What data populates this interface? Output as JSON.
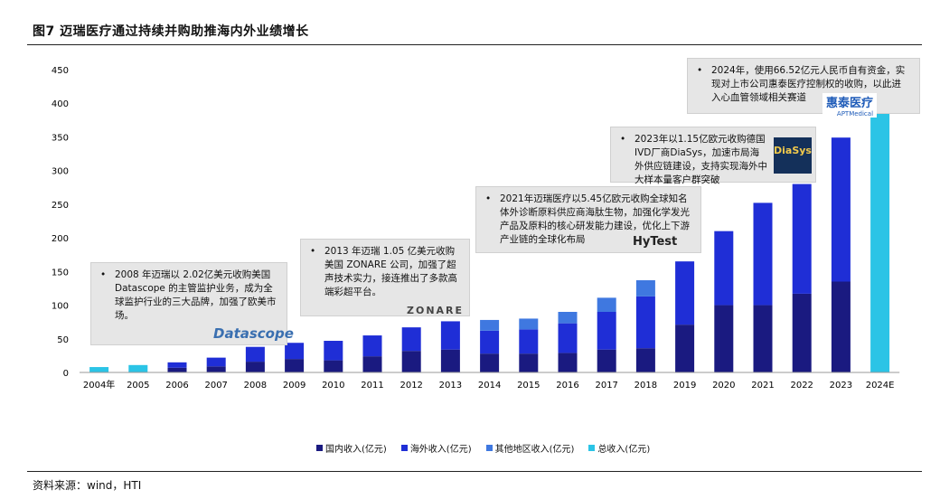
{
  "title": "图7  迈瑞医疗通过持续并购助推海内外业绩增长",
  "source": "资料来源：wind，HTI",
  "colors": {
    "domestic": "#1a1a80",
    "overseas": "#1f2ed6",
    "other": "#3f78e0",
    "total": "#2bc4e6"
  },
  "callouts": [
    {
      "bullet": "•",
      "text": "2008 年迈瑞以 2.02亿美元收购美国Datascope 的主管监护业务，成为全球监护行业的三大品牌，加强了欧美市场。",
      "logo": "Datascope"
    },
    {
      "bullet": "•",
      "text": "2013 年迈瑞 1.05 亿美元收购美国 ZONARE 公司，加强了超声技术实力，接连推出了多款高端彩超平台。",
      "logo": "ZONARE"
    },
    {
      "bullet": "•",
      "text": "2021年迈瑞医疗以5.45亿欧元收购全球知名体外诊断原料供应商海肽生物，加强化学发光产品及原料的核心研发能力建设，优化上下游产业链的全球化布局",
      "logo": "HyTest"
    },
    {
      "bullet": "•",
      "text": "2023年以1.15亿欧元收购德国IVD厂商DiaSys，加速市局海外供应链建设，支持实现海外中大样本量客户群突破",
      "logo": "DiaSys"
    },
    {
      "bullet": "•",
      "text": "2024年，使用66.52亿元人民币自有资金，实现对上市公司惠泰医疗控制权的收购，以此进入心血管领域相关赛道",
      "logo": "惠泰医疗",
      "logo_sub": "APTMedical"
    }
  ],
  "chart_data": {
    "type": "bar",
    "stacked": true,
    "categories": [
      "2004年",
      "2005",
      "2006",
      "2007",
      "2008",
      "2009",
      "2010",
      "2011",
      "2012",
      "2013",
      "2014",
      "2015",
      "2016",
      "2017",
      "2018",
      "2019",
      "2020",
      "2021",
      "2022",
      "2023",
      "2024E"
    ],
    "ylim": [
      0,
      450
    ],
    "yticks": [
      0,
      50,
      100,
      150,
      200,
      250,
      300,
      350,
      400,
      450
    ],
    "series": [
      {
        "name": "国内收入(亿元)",
        "values": [
          null,
          null,
          7,
          9,
          16,
          20,
          18,
          24,
          32,
          34,
          28,
          28,
          29,
          34,
          36,
          71,
          100,
          100,
          117,
          135,
          null
        ]
      },
      {
        "name": "海外收入(亿元)",
        "values": [
          null,
          null,
          8,
          13,
          22,
          24,
          29,
          31,
          35,
          42,
          34,
          36,
          44,
          56,
          77,
          94,
          110,
          152,
          163,
          214,
          null
        ]
      },
      {
        "name": "其他地区收入(亿元)",
        "values": [
          null,
          null,
          0,
          0,
          0,
          0,
          0,
          0,
          0,
          0,
          16,
          16,
          17,
          21,
          24,
          0,
          0,
          0,
          0,
          0,
          null
        ]
      },
      {
        "name": "总收入(亿元)",
        "values": [
          8,
          11,
          null,
          null,
          null,
          null,
          null,
          null,
          null,
          null,
          null,
          null,
          null,
          null,
          null,
          null,
          null,
          null,
          null,
          null,
          420
        ]
      }
    ]
  }
}
